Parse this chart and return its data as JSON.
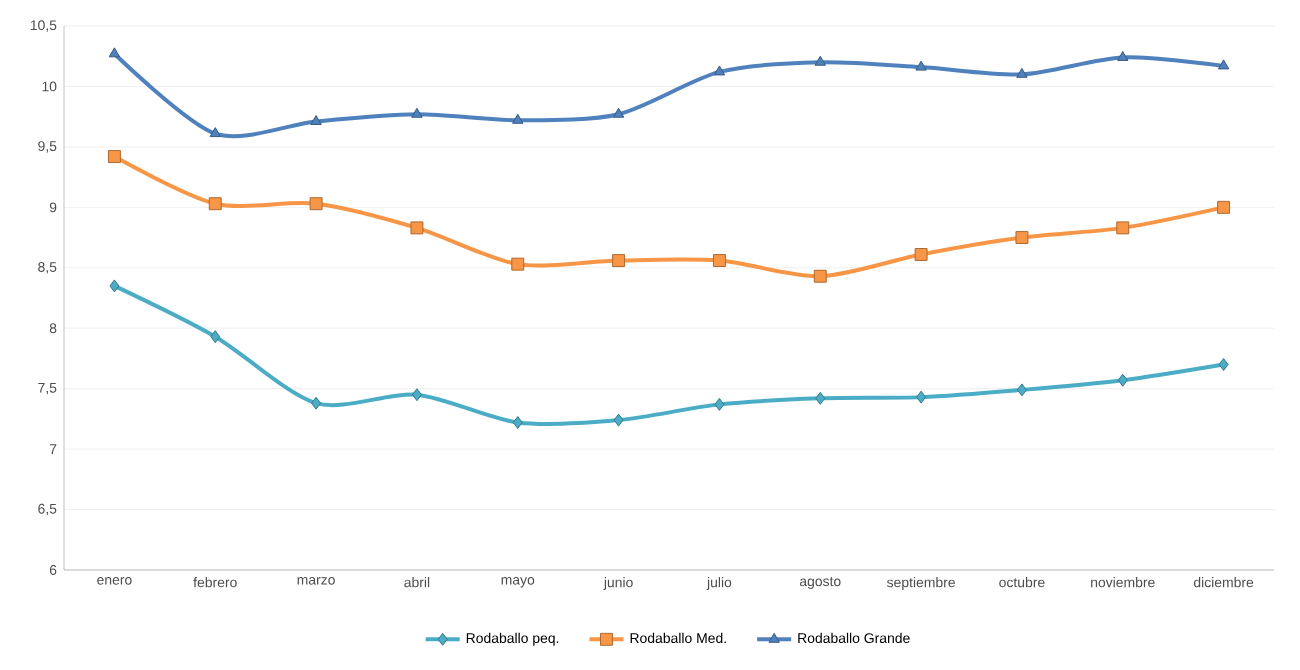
{
  "chart_data": {
    "type": "line",
    "categories": [
      "enero",
      "febrero",
      "marzo",
      "abril",
      "mayo",
      "junio",
      "julio",
      "agosto",
      "septiembre",
      "octubre",
      "noviembre",
      "diciembre"
    ],
    "series": [
      {
        "name": "Rodaballo peq.",
        "color": "#4bacc6",
        "marker": "diamond",
        "values": [
          8.35,
          7.93,
          7.38,
          7.45,
          7.22,
          7.24,
          7.37,
          7.42,
          7.43,
          7.49,
          7.57,
          7.7
        ]
      },
      {
        "name": "Rodaballo Med.",
        "color": "#f79646",
        "marker": "square",
        "values": [
          9.42,
          9.03,
          9.03,
          8.83,
          8.53,
          8.56,
          8.56,
          8.43,
          8.61,
          8.75,
          8.83,
          9.0
        ]
      },
      {
        "name": "Rodaballo Grande",
        "color": "#4f81bd",
        "marker": "triangle",
        "values": [
          10.27,
          9.61,
          9.71,
          9.77,
          9.72,
          9.77,
          10.12,
          10.2,
          10.16,
          10.1,
          10.24,
          10.17
        ]
      }
    ],
    "ylim": [
      6,
      10.5
    ],
    "yticks": [
      6,
      {
        "value": 6.5,
        "label": "6,5"
      },
      7,
      {
        "value": 7.5,
        "label": "7,5"
      },
      8,
      {
        "value": 8.5,
        "label": "8,5"
      },
      9,
      {
        "value": 9.5,
        "label": "9,5"
      },
      10,
      {
        "value": 10.5,
        "label": "10,5"
      }
    ],
    "grid": "y",
    "legend": "bottom",
    "line_style": "solid"
  }
}
